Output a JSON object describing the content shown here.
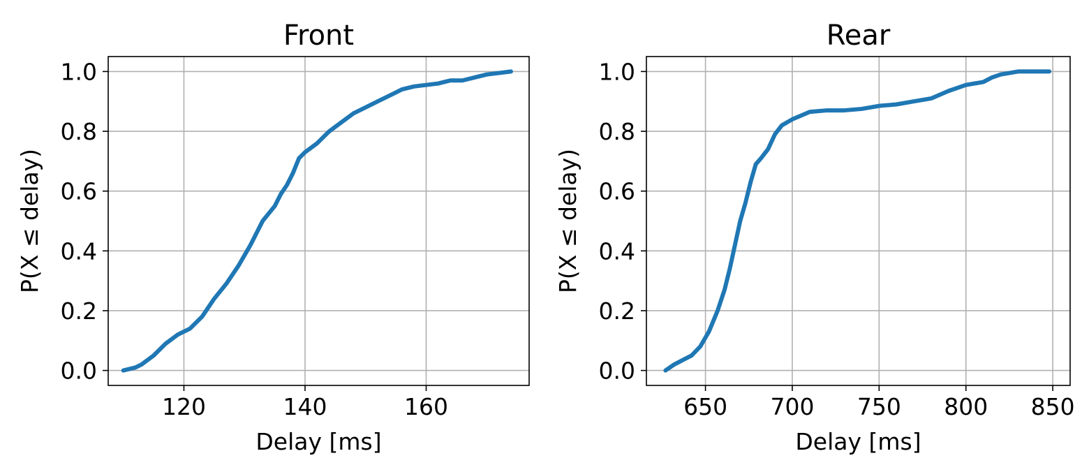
{
  "chart_data": [
    {
      "type": "line",
      "title": "Front",
      "xlabel": "Delay [ms]",
      "ylabel": "P(X ≤ delay)",
      "xlim": [
        107.5,
        177
      ],
      "ylim": [
        -0.05,
        1.05
      ],
      "xticks": [
        120,
        140,
        160
      ],
      "yticks": [
        0.0,
        0.2,
        0.4,
        0.6,
        0.8,
        1.0
      ],
      "xtick_labels": [
        "120",
        "140",
        "160"
      ],
      "ytick_labels": [
        "0.0",
        "0.2",
        "0.4",
        "0.6",
        "0.8",
        "1.0"
      ],
      "grid": true,
      "color": "#1f77b4",
      "series": [
        {
          "x": [
            110,
            112,
            113,
            115,
            117,
            119,
            121,
            123,
            125,
            127,
            129,
            131,
            133,
            135,
            136,
            137,
            138,
            139,
            140,
            142,
            144,
            146,
            148,
            150,
            152,
            154,
            156,
            158,
            160,
            162,
            164,
            166,
            168,
            170,
            172,
            174
          ],
          "y": [
            0.0,
            0.01,
            0.02,
            0.05,
            0.09,
            0.12,
            0.14,
            0.18,
            0.24,
            0.29,
            0.35,
            0.42,
            0.5,
            0.55,
            0.59,
            0.62,
            0.66,
            0.71,
            0.73,
            0.76,
            0.8,
            0.83,
            0.86,
            0.88,
            0.9,
            0.92,
            0.94,
            0.95,
            0.955,
            0.96,
            0.97,
            0.97,
            0.98,
            0.99,
            0.995,
            1.0
          ]
        }
      ]
    },
    {
      "type": "line",
      "title": "Rear",
      "xlabel": "Delay [ms]",
      "ylabel": "P(X ≤ delay)",
      "xlim": [
        616,
        860
      ],
      "ylim": [
        -0.05,
        1.05
      ],
      "xticks": [
        650,
        700,
        750,
        800,
        850
      ],
      "yticks": [
        0.0,
        0.2,
        0.4,
        0.6,
        0.8,
        1.0
      ],
      "xtick_labels": [
        "650",
        "700",
        "750",
        "800",
        "850"
      ],
      "ytick_labels": [
        "0.0",
        "0.2",
        "0.4",
        "0.6",
        "0.8",
        "1.0"
      ],
      "grid": true,
      "color": "#1f77b4",
      "series": [
        {
          "x": [
            627,
            632,
            637,
            642,
            647,
            652,
            657,
            661,
            664,
            667,
            670,
            673,
            676,
            679,
            682,
            686,
            690,
            694,
            700,
            710,
            720,
            730,
            740,
            750,
            760,
            770,
            780,
            790,
            800,
            810,
            815,
            820,
            830,
            840,
            848
          ],
          "y": [
            0.0,
            0.02,
            0.035,
            0.05,
            0.08,
            0.13,
            0.2,
            0.27,
            0.34,
            0.42,
            0.5,
            0.56,
            0.63,
            0.69,
            0.71,
            0.74,
            0.79,
            0.82,
            0.84,
            0.865,
            0.87,
            0.87,
            0.875,
            0.885,
            0.89,
            0.9,
            0.91,
            0.935,
            0.955,
            0.965,
            0.98,
            0.99,
            1.0,
            1.0,
            1.0
          ]
        }
      ]
    }
  ]
}
